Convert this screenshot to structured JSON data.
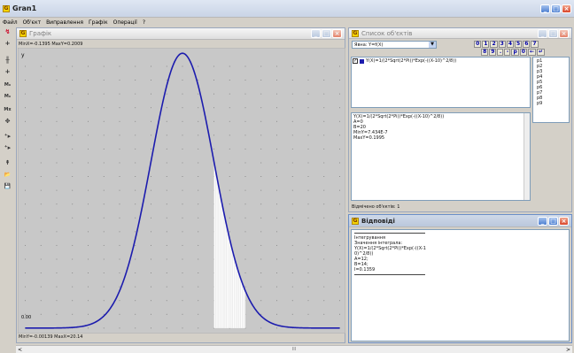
{
  "app": {
    "title": "Gran1"
  },
  "menu": [
    "Файл",
    "Об'єкт",
    "Виправлення",
    "Графік",
    "Операції",
    "?"
  ],
  "toolbar": [
    "↯",
    "+",
    "╫",
    "+",
    "M₀",
    "M₀",
    "Mx",
    "✥",
    "⁺▸",
    "⁺▸",
    "↟",
    "📂",
    "💾"
  ],
  "graph_window": {
    "title": "Графік",
    "min_label": "MinX=-0.1395 MaxY=0.2009",
    "y_axis_label": "y",
    "origin_label": "0.00",
    "bottom_label": "MinY=-0.00139 MaxX=20.14"
  },
  "objects_window": {
    "title": "Список об'єктів",
    "type_label": "Явна: Y=f(X)",
    "digit_row1": [
      "0",
      "1",
      "2",
      "3",
      "4",
      "5",
      "6",
      "7"
    ],
    "digit_row2": [
      "8",
      "9",
      ".",
      "-",
      "p",
      "0",
      "←",
      "↵"
    ],
    "formula_item": "Y(X)=1/(2*Sqrt(2*Pi))*Exp(-((X-10)^2/8))",
    "params": [
      "p1",
      "p2",
      "p3",
      "p4",
      "p5",
      "p6",
      "p7",
      "p8",
      "p9"
    ],
    "info_lines": [
      "Y(X)=1/(2*Sqrt(2*Pi))*Exp(-((X-10)^2/8))",
      "A=0",
      "B=20",
      "MinY=7.434E-7",
      "MaxY=0.1995"
    ],
    "status": "Відмічено об'єктів: 1"
  },
  "answers_window": {
    "title": "Відповіді",
    "lines": [
      "Інтегрування",
      "Значення інтеграла:",
      "Y(X)=1/(2*Sqrt(2*Pi))*Exp(-((X-1",
      "0)^2/8))",
      "A=12;",
      "B=14;",
      "I=0.1359"
    ]
  },
  "chart_data": {
    "type": "line",
    "function": "Y(X)=1/(2*Sqrt(2*Pi))*Exp(-((X-10)^2/8))",
    "xlim": [
      -0.1395,
      20.14
    ],
    "ylim": [
      -0.00139,
      0.2009
    ],
    "curve_color": "#1c1cae",
    "shaded_interval": [
      12,
      14
    ],
    "shade_color": "#ffffff",
    "integral_value": 0.1359
  },
  "scrollbar": {
    "left_arrow": "<",
    "thumb": "III",
    "right_arrow": ">"
  }
}
